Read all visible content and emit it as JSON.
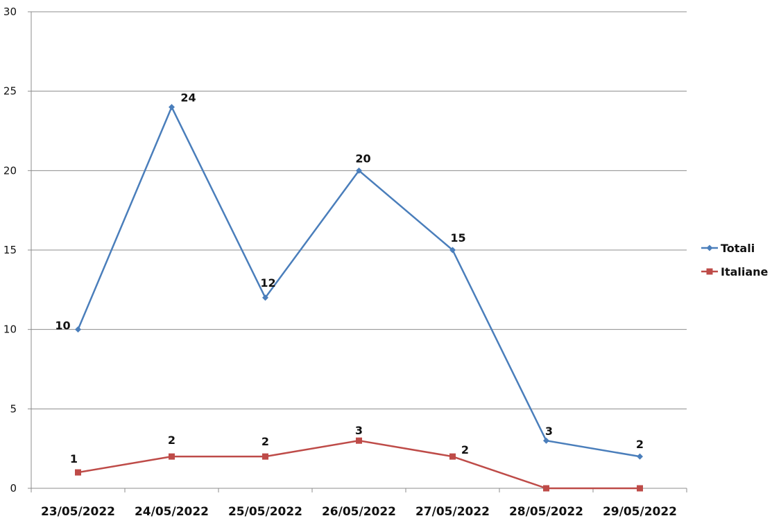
{
  "chart_data": {
    "type": "line",
    "title": "",
    "xlabel": "",
    "ylabel": "",
    "categories": [
      "23/05/2022",
      "24/05/2022",
      "25/05/2022",
      "26/05/2022",
      "27/05/2022",
      "28/05/2022",
      "29/05/2022"
    ],
    "ylim": [
      0,
      30
    ],
    "yticks": [
      0,
      5,
      10,
      15,
      20,
      25,
      30
    ],
    "grid": "horizontal",
    "legend_position": "right",
    "series": [
      {
        "name": "Totali",
        "values": [
          10,
          24,
          12,
          20,
          15,
          3,
          2
        ],
        "data_labels": [
          "10",
          "24",
          "12",
          "20",
          "15",
          "3",
          "2"
        ],
        "color": "#4a7ebb",
        "marker": "diamond"
      },
      {
        "name": "Italiane",
        "values": [
          1,
          2,
          2,
          3,
          2,
          0,
          0
        ],
        "data_labels": [
          "1",
          "2",
          "2",
          "3",
          "2",
          "",
          ""
        ],
        "color": "#be4b48",
        "marker": "square"
      }
    ]
  }
}
